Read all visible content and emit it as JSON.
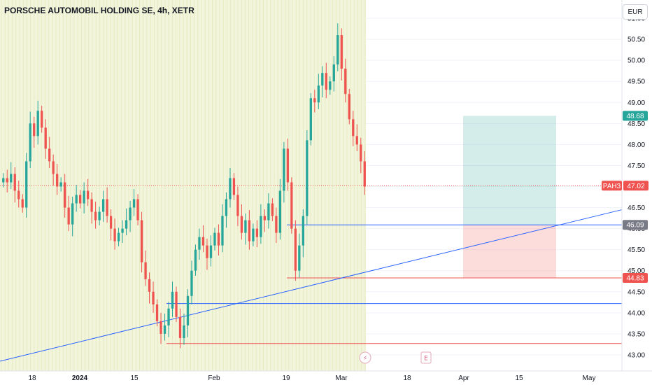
{
  "header": {
    "title": "PORSCHE AUTOMOBIL HOLDING SE, 4h, XETR",
    "currency_button": "EUR"
  },
  "colors": {
    "up": "#26a69a",
    "down": "#ef5350",
    "trend": "#2962ff",
    "target_zone": "#26a69a",
    "stop_zone": "#ef5350",
    "session_bg": "#f2f5dc"
  },
  "badges": {
    "symbol": "PAH3",
    "last": "47.02",
    "target": "48.68",
    "entry": "46.09",
    "stop": "44.83"
  },
  "event_icons": [
    {
      "name": "dividend-icon",
      "glyph": "⚡"
    },
    {
      "name": "earnings-icon",
      "glyph": "E"
    }
  ],
  "chart_data": {
    "type": "candlestick",
    "ylim": [
      42.75,
      51.3
    ],
    "y_ticks": [
      "51.00",
      "50.50",
      "50.00",
      "49.50",
      "49.00",
      "48.50",
      "48.00",
      "47.50",
      "47.00",
      "46.50",
      "46.00",
      "45.50",
      "45.00",
      "44.50",
      "44.00",
      "43.50",
      "43.00"
    ],
    "x_ticks": [
      {
        "label": "18",
        "bold": false
      },
      {
        "label": "2024",
        "bold": true
      },
      {
        "label": "15",
        "bold": false
      },
      {
        "label": "Feb",
        "bold": false
      },
      {
        "label": "19",
        "bold": false
      },
      {
        "label": "Mar",
        "bold": false
      },
      {
        "label": "18",
        "bold": false
      },
      {
        "label": "Apr",
        "bold": false
      },
      {
        "label": "15",
        "bold": false
      },
      {
        "label": "May",
        "bold": false
      }
    ],
    "last_price": 47.02,
    "levels": {
      "target": 48.68,
      "entry": 46.09,
      "stop": 44.83
    },
    "horizontal_lines": [
      {
        "price": 46.09,
        "color": "blue"
      },
      {
        "price": 44.83,
        "color": "red"
      },
      {
        "price": 44.22,
        "color": "blue"
      },
      {
        "price": 43.27,
        "color": "red"
      }
    ],
    "trend_line": {
      "from": 42.85,
      "to": 46.45
    },
    "closes": [
      47.2,
      47.1,
      47.3,
      46.9,
      46.7,
      46.5,
      47.6,
      48.5,
      48.2,
      48.8,
      48.4,
      47.9,
      47.6,
      47.3,
      47.0,
      47.1,
      46.5,
      46.1,
      46.6,
      46.8,
      46.6,
      46.9,
      46.7,
      46.4,
      46.2,
      46.4,
      46.7,
      46.3,
      46.0,
      45.7,
      45.9,
      46.0,
      46.2,
      46.5,
      46.7,
      46.2,
      45.2,
      44.8,
      44.5,
      44.2,
      43.8,
      43.5,
      43.7,
      44.1,
      44.5,
      43.9,
      43.4,
      43.7,
      44.4,
      45.0,
      45.5,
      45.8,
      45.6,
      45.3,
      45.6,
      45.9,
      45.6,
      46.3,
      46.7,
      47.2,
      46.8,
      46.3,
      45.9,
      46.2,
      45.7,
      46.0,
      45.8,
      46.3,
      46.2,
      46.6,
      46.3,
      45.9,
      46.9,
      47.9,
      47.1,
      46.0,
      45.0,
      45.6,
      46.3,
      48.1,
      49.1,
      49.0,
      49.4,
      49.7,
      49.3,
      49.5,
      49.9,
      50.6,
      49.8,
      49.2,
      48.6,
      48.2,
      48.0,
      47.6,
      47.0
    ]
  }
}
